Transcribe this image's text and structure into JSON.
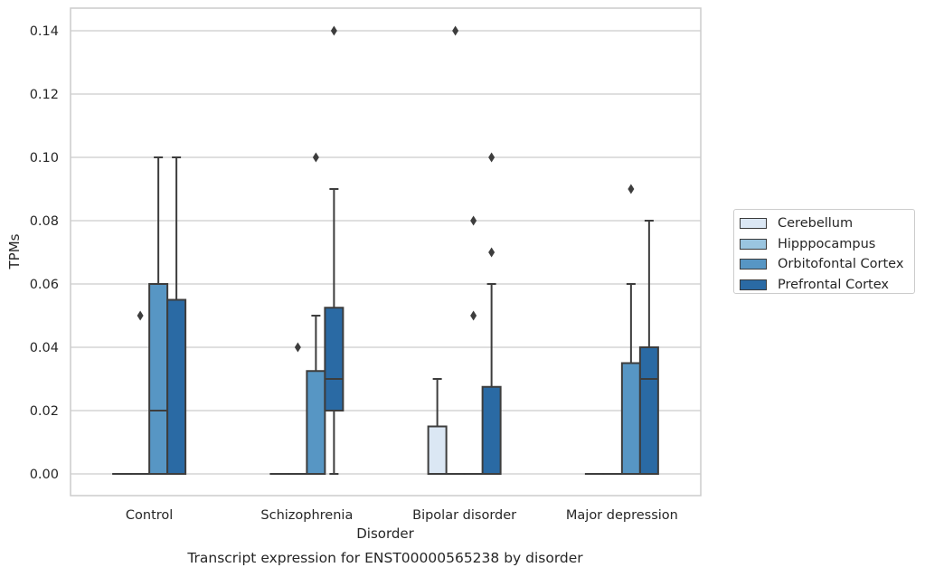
{
  "chart_data": {
    "type": "box",
    "title": "Transcript expression for ENST00000565238 by disorder",
    "xlabel": "Disorder",
    "ylabel": "TPMs",
    "ylim": [
      -0.007,
      0.147
    ],
    "yticks": [
      "0.00",
      "0.02",
      "0.04",
      "0.06",
      "0.08",
      "0.10",
      "0.12",
      "0.14"
    ],
    "categories": [
      "Control",
      "Schizophrenia",
      "Bipolar disorder",
      "Major depression"
    ],
    "grid": true,
    "legend_position": "right",
    "series": [
      {
        "name": "Cerebellum",
        "color": "#dbe7f4",
        "boxes": [
          {
            "q1": 0,
            "median": 0,
            "q3": 0,
            "whisker_low": 0,
            "whisker_high": 0,
            "outliers": []
          },
          {
            "q1": 0,
            "median": 0,
            "q3": 0,
            "whisker_low": 0,
            "whisker_high": 0,
            "outliers": []
          },
          {
            "q1": 0,
            "median": 0,
            "q3": 0.015,
            "whisker_low": 0,
            "whisker_high": 0.03,
            "outliers": []
          },
          {
            "q1": 0,
            "median": 0,
            "q3": 0,
            "whisker_low": 0,
            "whisker_high": 0,
            "outliers": []
          }
        ]
      },
      {
        "name": "Hipppocampus",
        "color": "#9ac5e0",
        "boxes": [
          {
            "q1": 0,
            "median": 0,
            "q3": 0,
            "whisker_low": 0,
            "whisker_high": 0,
            "outliers": [
              0.05
            ]
          },
          {
            "q1": 0,
            "median": 0,
            "q3": 0,
            "whisker_low": 0,
            "whisker_high": 0,
            "outliers": [
              0.04
            ]
          },
          {
            "q1": 0,
            "median": 0,
            "q3": 0,
            "whisker_low": 0,
            "whisker_high": 0,
            "outliers": [
              0.14
            ]
          },
          {
            "q1": 0,
            "median": 0,
            "q3": 0,
            "whisker_low": 0,
            "whisker_high": 0,
            "outliers": []
          }
        ]
      },
      {
        "name": "Orbitofontal Cortex",
        "color": "#5796c4",
        "boxes": [
          {
            "q1": 0,
            "median": 0.02,
            "q3": 0.06,
            "whisker_low": 0,
            "whisker_high": 0.1,
            "outliers": []
          },
          {
            "q1": 0,
            "median": 0,
            "q3": 0.0325,
            "whisker_low": 0,
            "whisker_high": 0.05,
            "outliers": [
              0.1
            ]
          },
          {
            "q1": 0,
            "median": 0,
            "q3": 0,
            "whisker_low": 0,
            "whisker_high": 0,
            "outliers": [
              0.05,
              0.08
            ]
          },
          {
            "q1": 0,
            "median": 0,
            "q3": 0.035,
            "whisker_low": 0,
            "whisker_high": 0.06,
            "outliers": [
              0.09
            ]
          }
        ]
      },
      {
        "name": "Prefrontal Cortex",
        "color": "#2a6aa4",
        "boxes": [
          {
            "q1": 0,
            "median": 0,
            "q3": 0.055,
            "whisker_low": 0,
            "whisker_high": 0.1,
            "outliers": []
          },
          {
            "q1": 0.02,
            "median": 0.03,
            "q3": 0.0525,
            "whisker_low": 0,
            "whisker_high": 0.09,
            "outliers": [
              0.14
            ]
          },
          {
            "q1": 0,
            "median": 0,
            "q3": 0.0275,
            "whisker_low": 0,
            "whisker_high": 0.06,
            "outliers": [
              0.07,
              0.1
            ]
          },
          {
            "q1": 0,
            "median": 0.03,
            "q3": 0.04,
            "whisker_low": 0,
            "whisker_high": 0.08,
            "outliers": []
          }
        ]
      }
    ]
  }
}
